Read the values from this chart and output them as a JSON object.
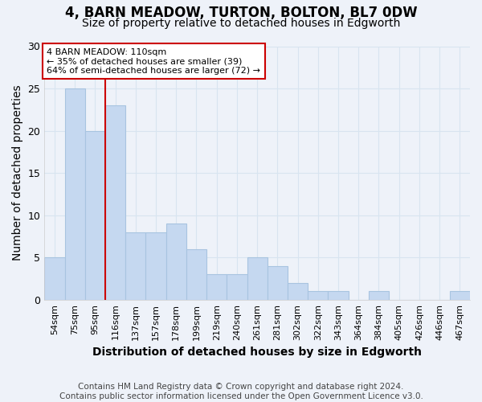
{
  "title": "4, BARN MEADOW, TURTON, BOLTON, BL7 0DW",
  "subtitle": "Size of property relative to detached houses in Edgworth",
  "xlabel": "Distribution of detached houses by size in Edgworth",
  "ylabel": "Number of detached properties",
  "categories": [
    "54sqm",
    "75sqm",
    "95sqm",
    "116sqm",
    "137sqm",
    "157sqm",
    "178sqm",
    "199sqm",
    "219sqm",
    "240sqm",
    "261sqm",
    "281sqm",
    "302sqm",
    "322sqm",
    "343sqm",
    "364sqm",
    "384sqm",
    "405sqm",
    "426sqm",
    "446sqm",
    "467sqm"
  ],
  "values": [
    5,
    25,
    20,
    23,
    8,
    8,
    9,
    6,
    3,
    3,
    5,
    4,
    2,
    1,
    1,
    0,
    1,
    0,
    0,
    0,
    1
  ],
  "bar_color": "#c5d8f0",
  "bar_edgecolor": "#a8c4e0",
  "vline_x_index": 2.5,
  "vline_color": "#cc0000",
  "annotation_text": "4 BARN MEADOW: 110sqm\n← 35% of detached houses are smaller (39)\n64% of semi-detached houses are larger (72) →",
  "annotation_box_edgecolor": "#cc0000",
  "annotation_box_facecolor": "#ffffff",
  "ylim": [
    0,
    30
  ],
  "yticks": [
    0,
    5,
    10,
    15,
    20,
    25,
    30
  ],
  "footer": "Contains HM Land Registry data © Crown copyright and database right 2024.\nContains public sector information licensed under the Open Government Licence v3.0.",
  "bg_color": "#eef2f9",
  "grid_color": "#d8e4f0",
  "title_fontsize": 12,
  "subtitle_fontsize": 10,
  "tick_fontsize": 8,
  "label_fontsize": 10,
  "footer_fontsize": 7.5
}
